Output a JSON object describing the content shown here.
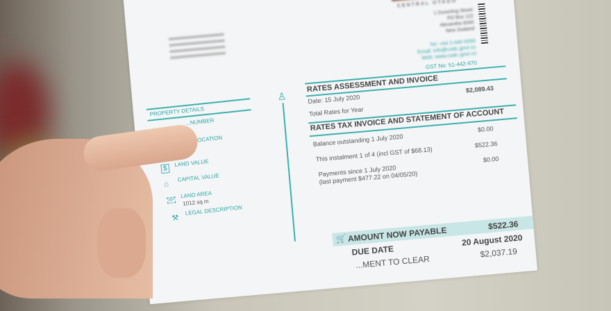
{
  "council": {
    "logo_text": "CENTRAL OTAGO",
    "address": [
      "1 Dunorling Street",
      "PO Box 122",
      "Alexandra 9340",
      "New Zealand"
    ],
    "tel": "Tel: +64 3 440 0056",
    "email": "Email: info@codc.govt.nz",
    "web": "Web: www.codc.govt.nz",
    "gst": "GST No: 51-442-970"
  },
  "assessment": {
    "title": "RATES ASSESSMENT AND INVOICE",
    "date": "Date: 15 July 2020",
    "total_label": "Total Rates for Year",
    "total_value": "$2,089.43"
  },
  "statement": {
    "title": "RATES TAX INVOICE AND STATEMENT OF ACCOUNT",
    "rows": [
      {
        "label": "Balance outstanding 1 July 2020",
        "value": "$0.00"
      },
      {
        "label": "This instalment 1 of 4 (incl GST of $68.13)",
        "value": "$522.36"
      },
      {
        "label": "Payments since 1 July 2020",
        "sub": "(last payment $477.22 on 04/05/20)",
        "value": "$0.00"
      }
    ]
  },
  "payable": {
    "label": "AMOUNT NOW PAYABLE",
    "value": "$522.36",
    "due_label": "DUE DATE",
    "due_value": "20 August 2020",
    "clear_label": "...MENT TO CLEAR",
    "clear_value": "$2,037.19"
  },
  "property": {
    "title": "PROPERTY DETAILS",
    "items": [
      {
        "label": "...NUMBER",
        "icon": "hash-icon"
      },
      {
        "label": "...ERTY LOCATION",
        "icon": "location-icon"
      },
      {
        "label": "LAND VALUE",
        "icon": "dollar-icon"
      },
      {
        "label": "CAPITAL VALUE",
        "icon": "house-dollar-icon"
      },
      {
        "label": "LAND AREA",
        "value": "1012 sq m",
        "icon": "area-icon"
      },
      {
        "label": "LEGAL DESCRIPTION",
        "icon": "gavel-icon"
      }
    ]
  },
  "accent": "#3ab0ad"
}
